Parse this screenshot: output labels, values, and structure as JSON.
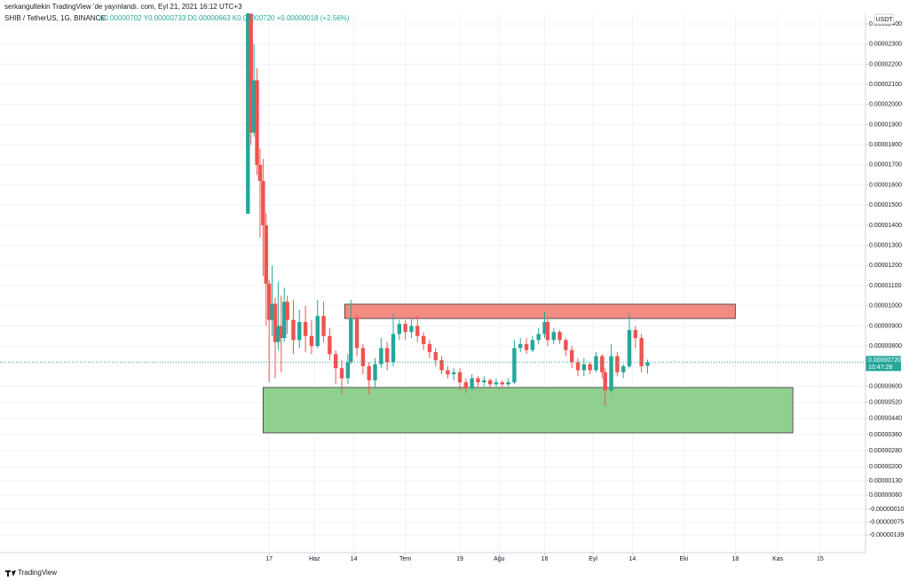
{
  "chart_data": {
    "type": "candlestick",
    "published": "serkangultekin TradingView 'de yayınlandı. com, Eyl 21, 2021 16:12 UTC+3",
    "title": "SHIB / TetherUS, 1G, BINANCE",
    "ohlc_legend": "A0.00000702  Y0.00000733  D0.00000663  K0.00000720  +0.00000018 (+2.56%)",
    "currency": "USDT",
    "brand": "TradingView",
    "up_color": "#26a69a",
    "down_color": "#ef5350",
    "grid": true,
    "xlim": [
      48.1,
      334
    ],
    "ylim": [
      -2.48e-06,
      2.453e-05
    ],
    "xticks": [
      {
        "value": 137,
        "label": "17"
      },
      {
        "value": 152,
        "label": "Haz"
      },
      {
        "value": 165,
        "label": "14"
      },
      {
        "value": 182,
        "label": "Tem"
      },
      {
        "value": 200,
        "label": "19"
      },
      {
        "value": 213,
        "label": "Ağu"
      },
      {
        "value": 228,
        "label": "16"
      },
      {
        "value": 244,
        "label": "Eyl"
      },
      {
        "value": 257,
        "label": "14"
      },
      {
        "value": 274,
        "label": "Eki"
      },
      {
        "value": 291,
        "label": "18"
      },
      {
        "value": 305,
        "label": "Kas"
      },
      {
        "value": 319,
        "label": "15"
      }
    ],
    "yticks": [
      {
        "value": 2.4e-05,
        "label": "0.00002400"
      },
      {
        "value": 2.3e-05,
        "label": "0.00002300"
      },
      {
        "value": 2.2e-05,
        "label": "0.00002200"
      },
      {
        "value": 2.1e-05,
        "label": "0.00002100"
      },
      {
        "value": 2e-05,
        "label": "0.00002000"
      },
      {
        "value": 1.9e-05,
        "label": "0.00001900"
      },
      {
        "value": 1.8e-05,
        "label": "0.00001800"
      },
      {
        "value": 1.7e-05,
        "label": "0.00001700"
      },
      {
        "value": 1.6e-05,
        "label": "0.00001600"
      },
      {
        "value": 1.5e-05,
        "label": "0.00001500"
      },
      {
        "value": 1.4e-05,
        "label": "0.00001400"
      },
      {
        "value": 1.3e-05,
        "label": "0.00001300"
      },
      {
        "value": 1.2e-05,
        "label": "0.00001200"
      },
      {
        "value": 1.1e-05,
        "label": "0.00001100"
      },
      {
        "value": 1e-05,
        "label": "0.00001000"
      },
      {
        "value": 9e-06,
        "label": "0.00000900"
      },
      {
        "value": 8e-06,
        "label": "0.00000800"
      },
      {
        "value": 6e-06,
        "label": "0.00000600"
      },
      {
        "value": 5.2e-06,
        "label": "0.00000520"
      },
      {
        "value": 4.4e-06,
        "label": "0.00000440"
      },
      {
        "value": 3.6e-06,
        "label": "0.00000360"
      },
      {
        "value": 2.8e-06,
        "label": "0.00000280"
      },
      {
        "value": 2e-06,
        "label": "0.00000200"
      },
      {
        "value": 1.3e-06,
        "label": "0.00000130"
      },
      {
        "value": 6e-07,
        "label": "0.00000060"
      },
      {
        "value": -1e-07,
        "label": "-0.00000010"
      },
      {
        "value": -7.5e-07,
        "label": "-0.00000075"
      },
      {
        "value": -1.39e-06,
        "label": "-0.00000139"
      }
    ],
    "last_price": {
      "value": 7.2e-06,
      "label": "0.00000720",
      "countdown": "10:47:28",
      "color": "#26a69a"
    },
    "zones": [
      {
        "color": "#f28b82",
        "x": [
          162,
          291
        ],
        "y": [
          9.37e-06,
          1.008e-05
        ]
      },
      {
        "color": "#8fd08f",
        "x": [
          135,
          310
        ],
        "y": [
          3.69e-06,
          5.94e-06
        ]
      }
    ],
    "x": [
      130,
      131,
      132,
      133,
      134,
      135,
      136,
      137,
      138,
      139,
      140,
      141,
      142,
      143,
      145,
      147,
      149,
      151,
      153,
      155,
      157,
      159,
      161,
      163,
      164,
      166,
      168,
      170,
      172,
      174,
      176,
      178,
      180,
      182,
      184,
      186,
      188,
      190,
      192,
      194,
      196,
      198,
      200,
      202,
      204,
      206,
      208,
      210,
      212,
      214,
      216,
      218,
      220,
      222,
      224,
      226,
      228,
      229,
      231,
      233,
      235,
      237,
      239,
      241,
      243,
      245,
      247,
      248,
      250,
      252,
      254,
      256,
      258,
      260,
      262
    ],
    "open": [
      1.457e-05,
      2.45e-05,
      1.86e-05,
      2.12e-05,
      1.7e-05,
      1.62e-05,
      1.4e-05,
      1.11e-05,
      9.3e-06,
      1.01e-05,
      8.2e-06,
      9e-06,
      8.4e-06,
      1.02e-05,
      9.3e-06,
      8.3e-06,
      9.2e-06,
      8.5e-06,
      8e-06,
      9.5e-06,
      8.5e-06,
      7.6e-06,
      6.9e-06,
      6.4e-06,
      7.2e-06,
      9.4e-06,
      7.9e-06,
      7e-06,
      6.3e-06,
      7.1e-06,
      7.9e-06,
      7.2e-06,
      8.6e-06,
      9.1e-06,
      8.7e-06,
      9e-06,
      8.5e-06,
      8.1e-06,
      7.7e-06,
      7.3e-06,
      6.8e-06,
      6.6e-06,
      6.7e-06,
      6.2e-06,
      5.9e-06,
      6.4e-06,
      6.2e-06,
      6.3e-06,
      6.1e-06,
      6.2e-06,
      6.1e-06,
      6.2e-06,
      7.9e-06,
      8.1e-06,
      7.8e-06,
      8.3e-06,
      8.6e-06,
      9.2e-06,
      8.3e-06,
      8.7e-06,
      8.3e-06,
      7.8e-06,
      7.2e-06,
      6.8e-06,
      7.1e-06,
      6.8e-06,
      7.5e-06,
      6.7e-06,
      5.8e-06,
      7.5e-06,
      6.7e-06,
      7e-06,
      8.8e-06,
      8.4e-06,
      7.02e-06
    ],
    "high": [
      2.453e-05,
      2.453e-05,
      2.3e-05,
      2.18e-05,
      1.78e-05,
      1.73e-05,
      1.46e-05,
      1.13e-05,
      1.2e-05,
      1.04e-05,
      1.12e-05,
      1.05e-05,
      1.09e-05,
      1.05e-05,
      1.03e-05,
      9.8e-06,
      1e-05,
      9.3e-06,
      1.03e-05,
      1.02e-05,
      8.9e-06,
      7.8e-06,
      7.3e-06,
      7.6e-06,
      1.03e-05,
      9.6e-06,
      8.1e-06,
      7.2e-06,
      7.4e-06,
      8.4e-06,
      8.2e-06,
      9.6e-06,
      9.3e-06,
      9.3e-06,
      9.4e-06,
      9.5e-06,
      8.7e-06,
      8.3e-06,
      7.9e-06,
      7.5e-06,
      7e-06,
      6.9e-06,
      6.9e-06,
      6.4e-06,
      6.6e-06,
      6.5e-06,
      6.5e-06,
      6.4e-06,
      6.4e-06,
      6.3e-06,
      6.4e-06,
      8.3e-06,
      8.4e-06,
      8.4e-06,
      8.5e-06,
      8.9e-06,
      9.7e-06,
      9.4e-06,
      8.9e-06,
      8.8e-06,
      8.4e-06,
      8e-06,
      7.4e-06,
      7.4e-06,
      7.2e-06,
      7.7e-06,
      7.6e-06,
      6.9e-06,
      8.1e-06,
      7.7e-06,
      7.1e-06,
      9.6e-06,
      9e-06,
      8.6e-06,
      7.33e-06
    ],
    "low": [
      1.457e-05,
      1.8e-05,
      1.84e-05,
      1.65e-05,
      1.34e-05,
      1.15e-05,
      9e-06,
      6.2e-06,
      8.5e-06,
      6.4e-06,
      7.8e-06,
      6.7e-06,
      8.2e-06,
      8.6e-06,
      7.6e-06,
      7.9e-06,
      7.7e-06,
      7.6e-06,
      7.9e-06,
      8.2e-06,
      7.3e-06,
      6.1e-06,
      5.6e-06,
      6.1e-06,
      7.1e-06,
      7.5e-06,
      6.6e-06,
      5.6e-06,
      5.9e-06,
      6.9e-06,
      6.8e-06,
      7e-06,
      8.3e-06,
      8.3e-06,
      8.4e-06,
      8.2e-06,
      7.8e-06,
      7.4e-06,
      7e-06,
      6.6e-06,
      6.4e-06,
      6.3e-06,
      5.8e-06,
      5.7e-06,
      5.8e-06,
      6e-06,
      6e-06,
      5.9e-06,
      6e-06,
      6e-06,
      6e-06,
      6.1e-06,
      7.7e-06,
      7.6e-06,
      7.7e-06,
      8.1e-06,
      8.4e-06,
      8e-06,
      8.1e-06,
      8.1e-06,
      7.5e-06,
      6.9e-06,
      6.5e-06,
      6.5e-06,
      6.6e-06,
      6.7e-06,
      6.4e-06,
      5e-06,
      5.7e-06,
      6.5e-06,
      6.4e-06,
      6.9e-06,
      7.9e-06,
      6.7e-06,
      6.63e-06
    ],
    "close": [
      2.453e-05,
      1.86e-05,
      2.12e-05,
      1.7e-05,
      1.62e-05,
      1.4e-05,
      1.11e-05,
      9.3e-06,
      1.01e-05,
      8.2e-06,
      9e-06,
      8.4e-06,
      1.02e-05,
      9.3e-06,
      8.3e-06,
      9.2e-06,
      8.5e-06,
      8e-06,
      9.5e-06,
      8.5e-06,
      7.6e-06,
      6.9e-06,
      6.4e-06,
      7.2e-06,
      9.4e-06,
      7.9e-06,
      7e-06,
      6.3e-06,
      7.1e-06,
      7.9e-06,
      7.2e-06,
      8.6e-06,
      9.1e-06,
      8.7e-06,
      9e-06,
      8.5e-06,
      8.1e-06,
      7.7e-06,
      7.3e-06,
      6.8e-06,
      6.6e-06,
      6.7e-06,
      6.2e-06,
      5.9e-06,
      6.4e-06,
      6.2e-06,
      6.3e-06,
      6.1e-06,
      6.2e-06,
      6.1e-06,
      6.2e-06,
      7.9e-06,
      8.1e-06,
      7.8e-06,
      8.3e-06,
      8.6e-06,
      9.2e-06,
      8.3e-06,
      8.7e-06,
      8.3e-06,
      7.8e-06,
      7.2e-06,
      6.8e-06,
      7.1e-06,
      6.8e-06,
      7.5e-06,
      6.7e-06,
      5.8e-06,
      7.5e-06,
      6.7e-06,
      7e-06,
      8.8e-06,
      8.4e-06,
      7e-06,
      7.2e-06
    ]
  }
}
